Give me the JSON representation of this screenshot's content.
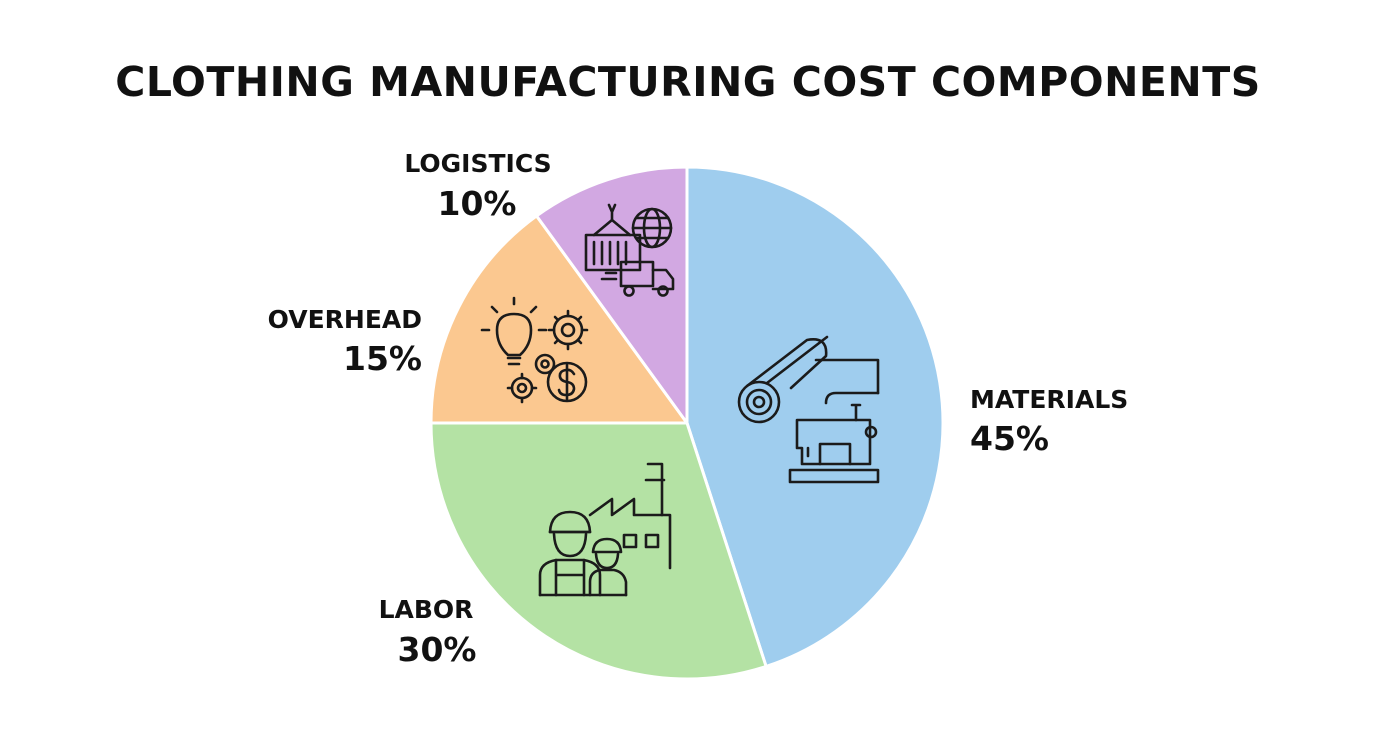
{
  "chart_data": {
    "type": "pie",
    "title": "CLOTHING MANUFACTURING COST COMPONENTS",
    "slices": [
      {
        "label": "MATERIALS",
        "value": 45,
        "value_label": "45%",
        "color": "#9fcdee",
        "icon": "fabric-roll-sewing-machine-icon"
      },
      {
        "label": "LABOR",
        "value": 30,
        "value_label": "30%",
        "color": "#b4e2a4",
        "icon": "factory-workers-icon"
      },
      {
        "label": "OVERHEAD",
        "value": 15,
        "value_label": "15%",
        "color": "#fbc890",
        "icon": "lightbulb-gears-dollar-icon"
      },
      {
        "label": "LOGISTICS",
        "value": 10,
        "value_label": "10%",
        "color": "#d2a8e2",
        "icon": "container-globe-truck-icon"
      }
    ],
    "start": "top",
    "direction": "clockwise",
    "legend": "none"
  }
}
